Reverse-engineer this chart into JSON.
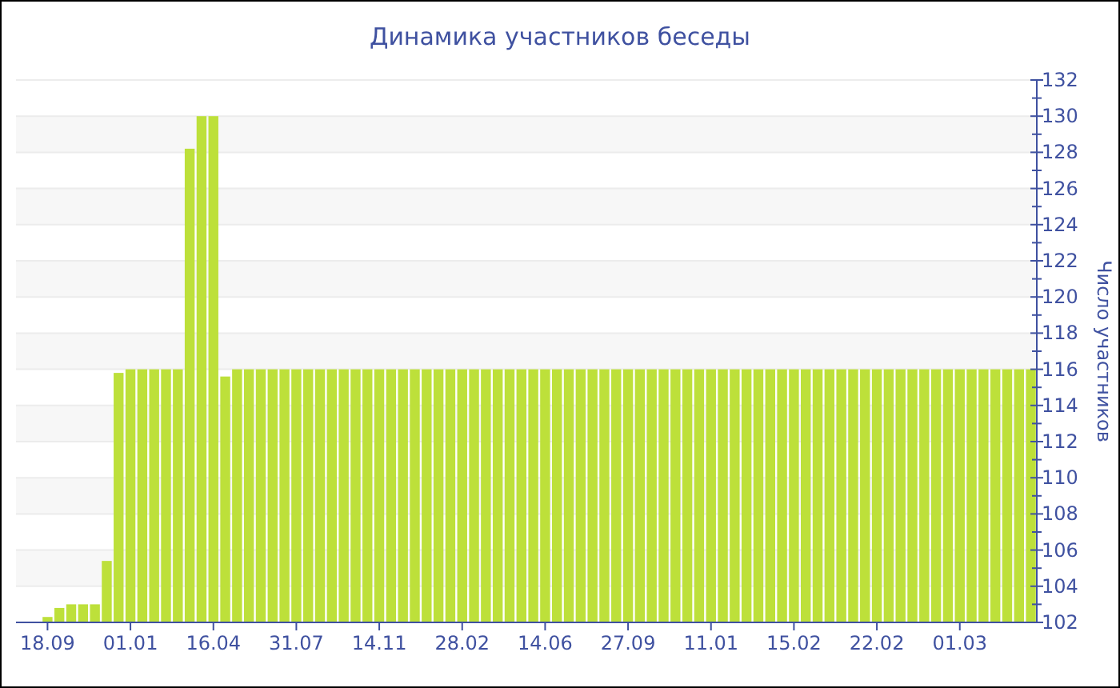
{
  "chart_data": {
    "type": "bar",
    "title": "Динамика участников беседы",
    "ylabel": "Число участников",
    "categories": [
      "18.09",
      null,
      null,
      null,
      null,
      null,
      null,
      "01.01",
      null,
      null,
      null,
      null,
      null,
      null,
      "16.04",
      null,
      null,
      null,
      null,
      null,
      null,
      "31.07",
      null,
      null,
      null,
      null,
      null,
      null,
      "14.11",
      null,
      null,
      null,
      null,
      null,
      null,
      "28.02",
      null,
      null,
      null,
      null,
      null,
      null,
      "14.06",
      null,
      null,
      null,
      null,
      null,
      null,
      "27.09",
      null,
      null,
      null,
      null,
      null,
      null,
      "11.01",
      null,
      null,
      null,
      null,
      null,
      null,
      "15.02",
      null,
      null,
      null,
      null,
      null,
      null,
      "22.02",
      null,
      null,
      null,
      null,
      null,
      null,
      "01.03",
      null,
      null,
      null,
      null,
      null,
      null
    ],
    "values": [
      102.3,
      102.8,
      103,
      103,
      103,
      105.4,
      115.8,
      116,
      116,
      116,
      116,
      116,
      128.2,
      130,
      130,
      115.6,
      116,
      116,
      116,
      116,
      116,
      116,
      116,
      116,
      116,
      116,
      116,
      116,
      116,
      116,
      116,
      116,
      116,
      116,
      116,
      116,
      116,
      116,
      116,
      116,
      116,
      116,
      116,
      116,
      116,
      116,
      116,
      116,
      116,
      116,
      116,
      116,
      116,
      116,
      116,
      116,
      116,
      116,
      116,
      116,
      116,
      116,
      116,
      116,
      116,
      116,
      116,
      116,
      116,
      116,
      116,
      116,
      116,
      116,
      116,
      116,
      116,
      116,
      116,
      116,
      116,
      116,
      116,
      116
    ],
    "color": "#bde03a",
    "ylim": [
      102,
      132
    ],
    "yticks": [
      102,
      {
        "value": 103,
        "label": null
      },
      104,
      {
        "value": 105,
        "label": null
      },
      106,
      {
        "value": 107,
        "label": null
      },
      108,
      {
        "value": 109,
        "label": null
      },
      110,
      {
        "value": 111,
        "label": null
      },
      112,
      {
        "value": 113,
        "label": null
      },
      114,
      {
        "value": 115,
        "label": null
      },
      116,
      {
        "value": 117,
        "label": null
      },
      118,
      {
        "value": 119,
        "label": null
      },
      120,
      {
        "value": 121,
        "label": null
      },
      122,
      {
        "value": 123,
        "label": null
      },
      124,
      {
        "value": 125,
        "label": null
      },
      126,
      {
        "value": 127,
        "label": null
      },
      128,
      {
        "value": 129,
        "label": null
      },
      130,
      {
        "value": 131,
        "label": null
      },
      132
    ],
    "grid": "y"
  }
}
